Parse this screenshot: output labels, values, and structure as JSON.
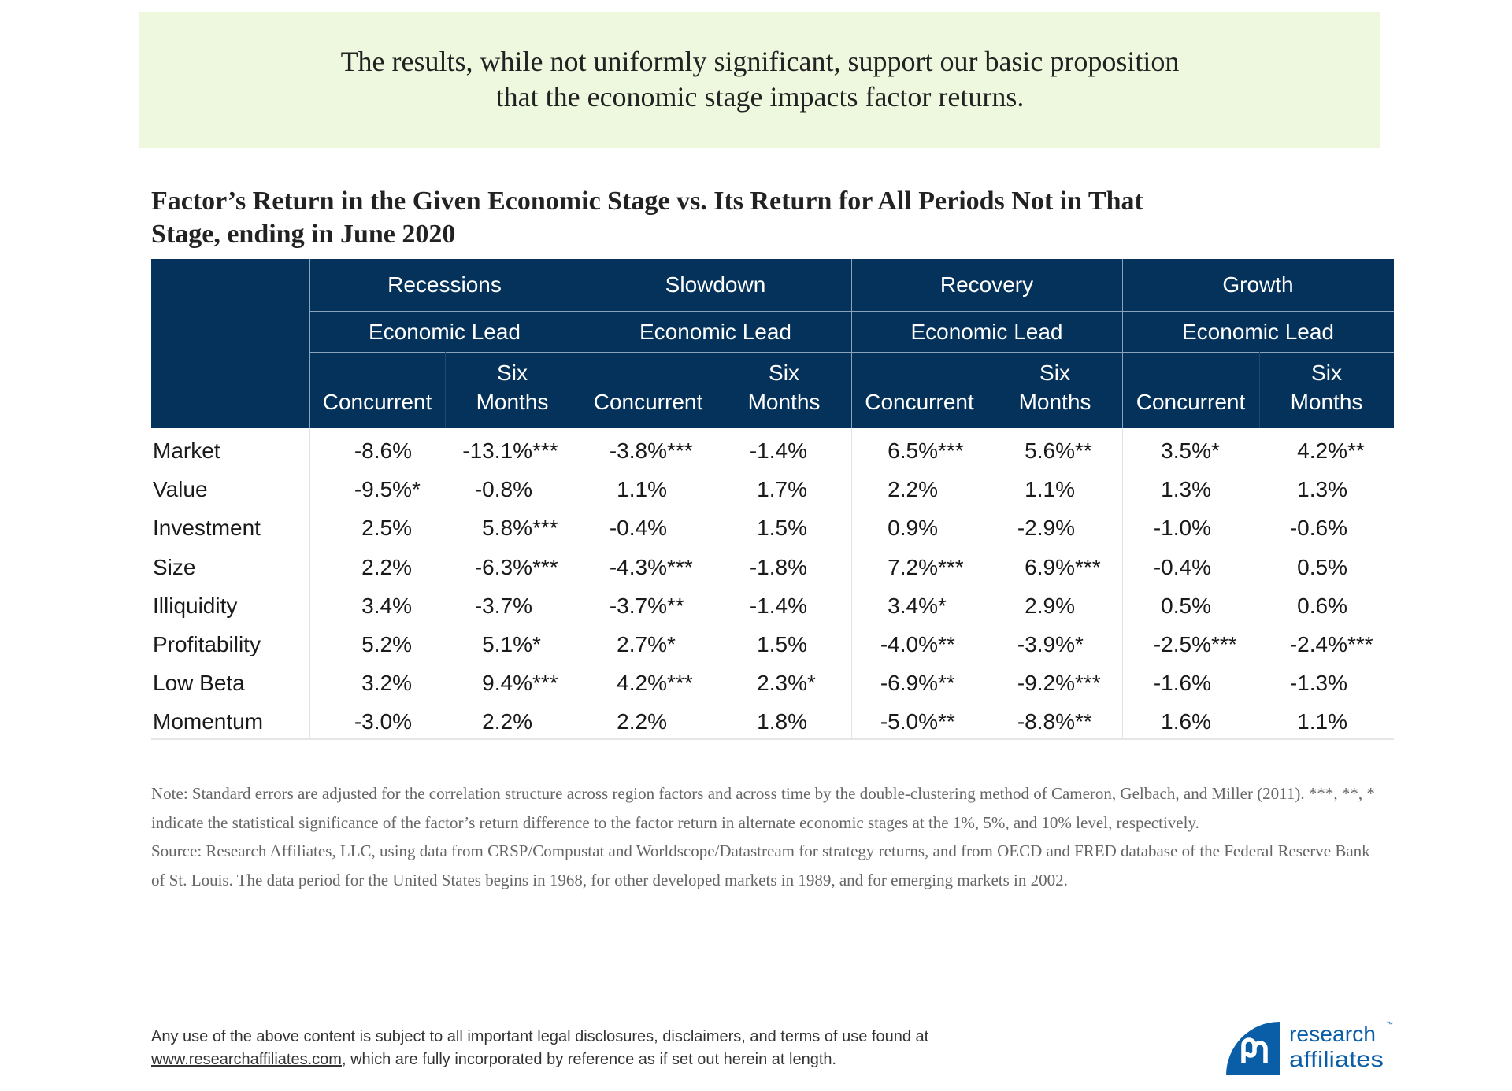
{
  "callout": {
    "line1": "The results, while not uniformly significant, support our basic proposition",
    "line2": "that the economic stage impacts factor returns."
  },
  "table_title": {
    "line1": "Factor’s Return in the Given Economic Stage vs. Its Return for All Periods Not in That",
    "line2": "Stage, ending in June 2020"
  },
  "header": {
    "stages": [
      "Recessions",
      "Slowdown",
      "Recovery",
      "Growth"
    ],
    "lead_label": "Economic Lead",
    "sub_concurrent": "Concurrent",
    "sub_six_1": "Six",
    "sub_six_2": "Months"
  },
  "rows": [
    {
      "label": "Market",
      "values": [
        [
          "-8.6%",
          ""
        ],
        [
          "-13.1%",
          "***"
        ],
        [
          "-3.8%",
          "***"
        ],
        [
          "-1.4%",
          ""
        ],
        [
          "6.5%",
          "***"
        ],
        [
          "5.6%",
          "**"
        ],
        [
          "3.5%",
          "*"
        ],
        [
          "4.2%",
          "**"
        ]
      ]
    },
    {
      "label": "Value",
      "values": [
        [
          "-9.5%",
          "*"
        ],
        [
          "-0.8%",
          ""
        ],
        [
          "1.1%",
          ""
        ],
        [
          "1.7%",
          ""
        ],
        [
          "2.2%",
          ""
        ],
        [
          "1.1%",
          ""
        ],
        [
          "1.3%",
          ""
        ],
        [
          "1.3%",
          ""
        ]
      ]
    },
    {
      "label": "Investment",
      "values": [
        [
          "2.5%",
          ""
        ],
        [
          "5.8%",
          "***"
        ],
        [
          "-0.4%",
          ""
        ],
        [
          "1.5%",
          ""
        ],
        [
          "0.9%",
          ""
        ],
        [
          "-2.9%",
          ""
        ],
        [
          "-1.0%",
          ""
        ],
        [
          "-0.6%",
          ""
        ]
      ]
    },
    {
      "label": "Size",
      "values": [
        [
          "2.2%",
          ""
        ],
        [
          "-6.3%",
          "***"
        ],
        [
          "-4.3%",
          "***"
        ],
        [
          "-1.8%",
          ""
        ],
        [
          "7.2%",
          "***"
        ],
        [
          "6.9%",
          "***"
        ],
        [
          "-0.4%",
          ""
        ],
        [
          "0.5%",
          ""
        ]
      ]
    },
    {
      "label": "Illiquidity",
      "values": [
        [
          "3.4%",
          ""
        ],
        [
          "-3.7%",
          ""
        ],
        [
          "-3.7%",
          "**"
        ],
        [
          "-1.4%",
          ""
        ],
        [
          "3.4%",
          "*"
        ],
        [
          "2.9%",
          ""
        ],
        [
          "0.5%",
          ""
        ],
        [
          "0.6%",
          ""
        ]
      ]
    },
    {
      "label": "Profitability",
      "values": [
        [
          "5.2%",
          ""
        ],
        [
          "5.1%",
          "*"
        ],
        [
          "2.7%",
          "*"
        ],
        [
          "1.5%",
          ""
        ],
        [
          "-4.0%",
          "**"
        ],
        [
          "-3.9%",
          "*"
        ],
        [
          "-2.5%",
          "***"
        ],
        [
          "-2.4%",
          "***"
        ]
      ]
    },
    {
      "label": "Low Beta",
      "values": [
        [
          "3.2%",
          ""
        ],
        [
          "9.4%",
          "***"
        ],
        [
          "4.2%",
          "***"
        ],
        [
          "2.3%",
          "*"
        ],
        [
          "-6.9%",
          "**"
        ],
        [
          "-9.2%",
          "***"
        ],
        [
          "-1.6%",
          ""
        ],
        [
          "-1.3%",
          ""
        ]
      ]
    },
    {
      "label": "Momentum",
      "values": [
        [
          "-3.0%",
          ""
        ],
        [
          "2.2%",
          ""
        ],
        [
          "2.2%",
          ""
        ],
        [
          "1.8%",
          ""
        ],
        [
          "-5.0%",
          "**"
        ],
        [
          "-8.8%",
          "**"
        ],
        [
          "1.6%",
          ""
        ],
        [
          "1.1%",
          ""
        ]
      ]
    }
  ],
  "notes": {
    "note": "Note: Standard errors are adjusted for the correlation structure across region factors and across time by the double-clustering method of Cameron, Gelbach, and Miller (2011).  ***, **, * indicate the statistical significance of the factor’s return difference to the factor return in alternate economic stages at the 1%, 5%, and 10% level, respectively.",
    "source": "Source: Research Affiliates, LLC, using data from CRSP/Compustat and Worldscope/Datastream for strategy returns, and from OECD and FRED database of the Federal Reserve Bank of St. Louis. The data period for the United States begins in 1968, for other developed markets in 1989, and for emerging markets in 2002."
  },
  "footer": {
    "line1": "Any use of the above content is subject to all important legal disclosures, disclaimers, and terms of use found at",
    "link": "www.researchaffiliates.com",
    "line2_rest": ", which are fully incorporated by reference as if set out herein at length."
  },
  "logo": {
    "word1": "research",
    "word2": "affiliates",
    "tm": "™",
    "color": "#0a5ea8"
  },
  "colors": {
    "header_bg": "#04325a",
    "callout_bg": "#eef8de"
  }
}
